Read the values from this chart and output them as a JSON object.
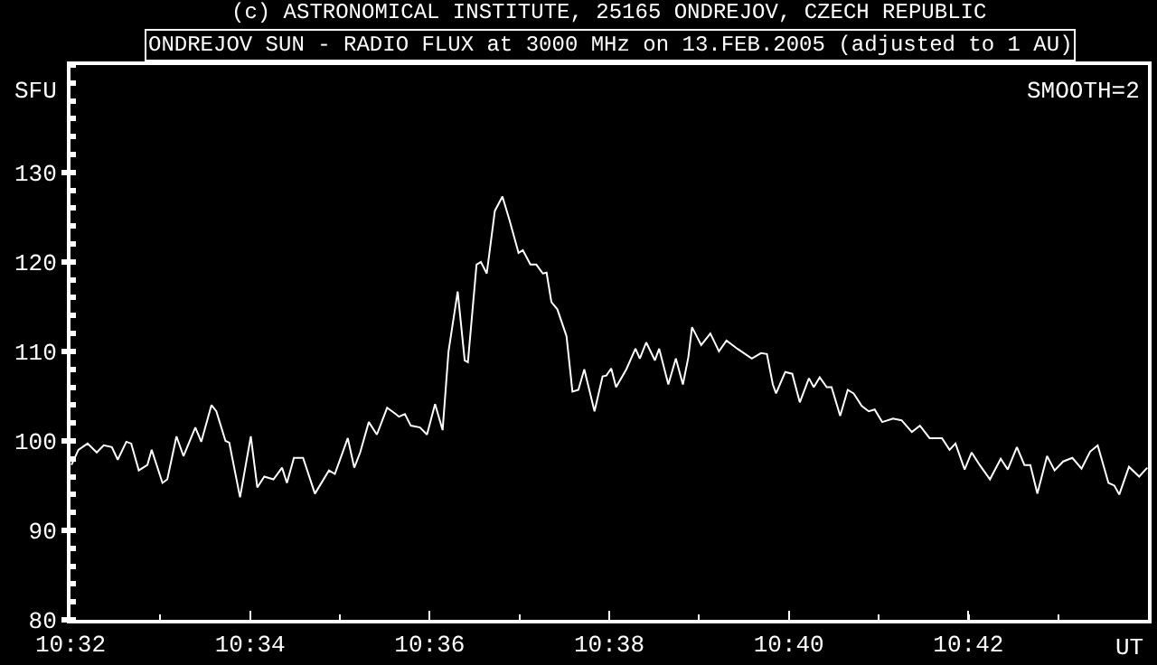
{
  "chart_data": {
    "type": "line",
    "title": "ONDREJOV SUN - RADIO FLUX at 3000 MHz on 13.FEB.2005 (adjusted to 1 AU)",
    "annotations": [
      "(c) ASTRONOMICAL INSTITUTE, 25165 ONDREJOV, CZECH REPUBLIC",
      "SMOOTH=2"
    ],
    "xlabel": "UT",
    "ylabel": "SFU",
    "xlim": [
      10.53333,
      10.73333
    ],
    "ylim": [
      80,
      142
    ],
    "xticks": [
      {
        "value": 10.53333,
        "label": "10:32"
      },
      {
        "value": 10.56667,
        "label": "10:34"
      },
      {
        "value": 10.6,
        "label": "10:36"
      },
      {
        "value": 10.63333,
        "label": "10:38"
      },
      {
        "value": 10.66667,
        "label": "10:40"
      },
      {
        "value": 10.7,
        "label": "10:42"
      }
    ],
    "yticks": [
      80,
      90,
      100,
      110,
      120,
      130
    ],
    "grid": false,
    "marker": "none",
    "line_style": "solid",
    "series": [
      {
        "color": "#ffffff",
        "x": [
          10.5335,
          10.5348,
          10.5365,
          10.5382,
          10.5395,
          10.541,
          10.5421,
          10.5437,
          10.5446,
          10.546,
          10.5476,
          10.5484,
          10.5504,
          10.5513,
          10.553,
          10.5543,
          10.5565,
          10.5576,
          10.5595,
          10.5604,
          10.5621,
          10.5628,
          10.5648,
          10.5668,
          10.568,
          10.5693,
          10.571,
          10.5726,
          10.5735,
          10.5748,
          10.5765,
          10.5787,
          10.5813,
          10.5824,
          10.5848,
          10.586,
          10.5871,
          10.5887,
          10.5902,
          10.5921,
          10.5937,
          10.5943,
          10.5954,
          10.5965,
          10.5982,
          10.5995,
          10.601,
          10.6024,
          10.6035,
          10.6052,
          10.6065,
          10.6071,
          10.6087,
          10.6095,
          10.6106,
          10.6121,
          10.6135,
          10.6148,
          10.6165,
          10.6173,
          10.6187,
          10.6198,
          10.621,
          10.6217,
          10.6226,
          10.6237,
          10.6254,
          10.6265,
          10.6276,
          10.6287,
          10.6306,
          10.6321,
          10.6328,
          10.6337,
          10.6346,
          10.6365,
          10.6382,
          10.639,
          10.6402,
          10.6418,
          10.6426,
          10.6443,
          10.6457,
          10.647,
          10.648,
          10.6487,
          10.6504,
          10.6521,
          10.6537,
          10.6551,
          10.6571,
          10.6598,
          10.6615,
          10.6626,
          10.6637,
          10.6643,
          10.666,
          10.6673,
          10.6687,
          10.6704,
          10.6713,
          10.6724,
          10.6737,
          10.6746,
          10.6762,
          10.6776,
          10.6787,
          10.6802,
          10.6815,
          10.6826,
          10.684,
          10.686,
          10.6876,
          10.6895,
          10.691,
          10.6928,
          10.6951,
          10.6965,
          10.6976,
          10.6993,
          10.7006,
          10.7021,
          10.704,
          10.706,
          10.7073,
          10.709,
          10.7104,
          10.7115,
          10.7128,
          10.7146,
          10.716,
          10.7176,
          10.7193,
          10.721,
          10.7226,
          10.724,
          10.726,
          10.7271,
          10.728,
          10.7298,
          10.7317,
          10.7332
        ],
        "values": [
          97.3,
          99.0,
          99.7,
          98.7,
          99.5,
          99.3,
          97.9,
          99.9,
          99.7,
          96.7,
          97.3,
          99.0,
          95.3,
          95.7,
          100.5,
          98.3,
          101.5,
          99.9,
          104.0,
          103.3,
          100.0,
          99.8,
          93.7,
          100.5,
          94.8,
          96.0,
          95.7,
          97.0,
          95.3,
          98.1,
          98.1,
          94.1,
          96.7,
          96.3,
          100.3,
          97.0,
          98.7,
          102.1,
          100.7,
          103.7,
          103.0,
          102.7,
          103.0,
          101.7,
          101.5,
          100.7,
          104.1,
          101.2,
          110.0,
          116.7,
          109.0,
          108.8,
          119.7,
          120.0,
          118.7,
          125.7,
          127.3,
          124.7,
          121.0,
          121.3,
          119.7,
          119.7,
          118.7,
          118.8,
          115.5,
          114.7,
          111.7,
          105.5,
          105.7,
          108.0,
          103.3,
          107.2,
          107.3,
          108.1,
          106.0,
          108.0,
          110.3,
          109.2,
          111.0,
          109.0,
          110.3,
          106.3,
          109.2,
          106.3,
          109.3,
          112.7,
          110.7,
          112.0,
          110.0,
          111.2,
          110.3,
          109.2,
          109.8,
          109.7,
          106.3,
          105.3,
          107.7,
          107.5,
          104.3,
          107.0,
          106.0,
          107.1,
          106.0,
          106.0,
          102.8,
          105.7,
          105.3,
          103.9,
          103.3,
          103.5,
          102.1,
          102.5,
          102.3,
          101.0,
          101.7,
          100.3,
          100.3,
          99.0,
          99.7,
          96.8,
          98.7,
          97.3,
          95.7,
          98.0,
          96.8,
          99.3,
          97.3,
          97.3,
          94.1,
          98.3,
          96.7,
          97.7,
          98.1,
          96.9,
          98.8,
          99.5,
          95.3,
          95.0,
          94.0,
          97.1,
          96.0,
          97.0
        ]
      }
    ]
  }
}
